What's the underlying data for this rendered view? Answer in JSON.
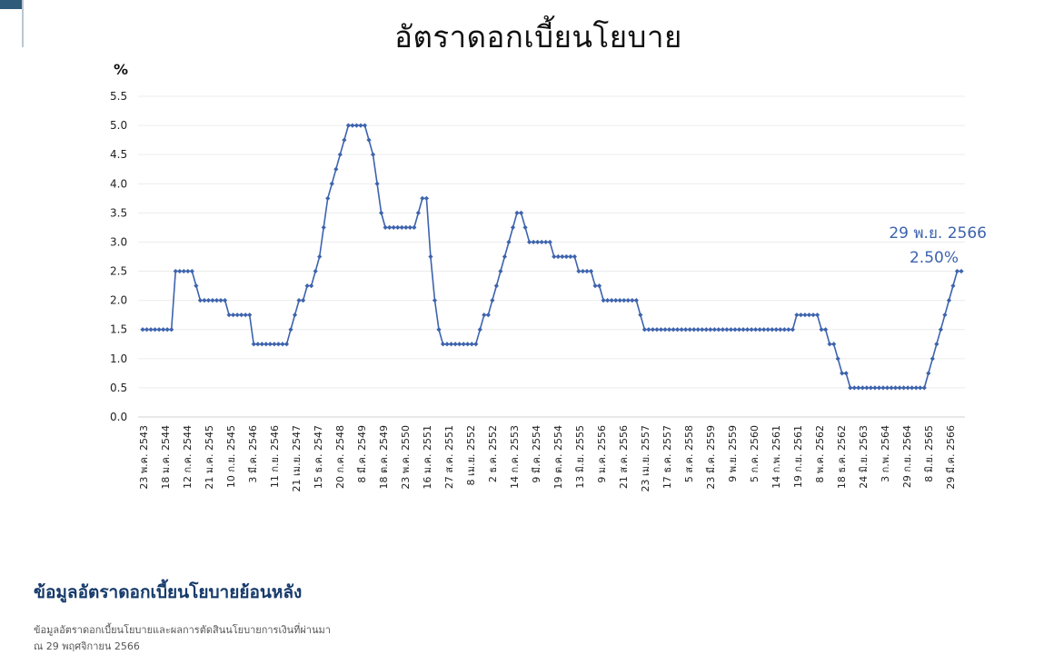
{
  "chart_data": {
    "type": "line",
    "title": "อัตราดอกเบี้ยนโยบาย",
    "ylabel": "%",
    "ylim": [
      0,
      5.5
    ],
    "yticks": [
      "0.0",
      "0.5",
      "1.0",
      "1.5",
      "2.0",
      "2.5",
      "3.0",
      "3.5",
      "4.0",
      "4.5",
      "5.0",
      "5.5"
    ],
    "grid": true,
    "line_color": "#3d63ad",
    "x_tick_labels": [
      "23 พ.ค. 2543",
      "18 ม.ค. 2544",
      "12 ก.ค. 2544",
      "21 ม.ค. 2545",
      "10 ก.ย. 2545",
      "3 มี.ค. 2546",
      "11 ก.ย. 2546",
      "21 เม.ย. 2547",
      "15 ธ.ค. 2547",
      "20 ก.ค. 2548",
      "8 มี.ค. 2549",
      "18 ต.ค. 2549",
      "23 พ.ค. 2550",
      "16 ม.ค. 2551",
      "27 ส.ค. 2551",
      "8 เม.ย. 2552",
      "2 ธ.ค. 2552",
      "14 ก.ค. 2553",
      "9 มี.ค. 2554",
      "19 ต.ค. 2554",
      "13 มิ.ย. 2555",
      "9 ม.ค. 2556",
      "21 ส.ค. 2556",
      "23 เม.ย. 2557",
      "17 ธ.ค. 2557",
      "5 ส.ค. 2558",
      "23 มี.ค. 2559",
      "9 พ.ย. 2559",
      "5 ก.ค. 2560",
      "14 ก.พ. 2561",
      "19 ก.ย. 2561",
      "8 พ.ค. 2562",
      "18 ธ.ค. 2562",
      "24 มิ.ย. 2563",
      "3 ก.พ. 2564",
      "29 ก.ย. 2564",
      "8 มิ.ย. 2565",
      "29 มี.ค. 2566"
    ],
    "series": [
      {
        "values": [
          1.5,
          1.5,
          1.5,
          1.5,
          1.5,
          1.5,
          1.5,
          1.5,
          2.5,
          2.5,
          2.5,
          2.5,
          2.5,
          2.25,
          2.0,
          2.0,
          2.0,
          2.0,
          2.0,
          2.0,
          2.0,
          1.75,
          1.75,
          1.75,
          1.75,
          1.75,
          1.75,
          1.25,
          1.25,
          1.25,
          1.25,
          1.25,
          1.25,
          1.25,
          1.25,
          1.25,
          1.5,
          1.75,
          2.0,
          2.0,
          2.25,
          2.25,
          2.5,
          2.75,
          3.25,
          3.75,
          4.0,
          4.25,
          4.5,
          4.75,
          5.0,
          5.0,
          5.0,
          5.0,
          5.0,
          4.75,
          4.5,
          4.0,
          3.5,
          3.25,
          3.25,
          3.25,
          3.25,
          3.25,
          3.25,
          3.25,
          3.25,
          3.5,
          3.75,
          3.75,
          2.75,
          2.0,
          1.5,
          1.25,
          1.25,
          1.25,
          1.25,
          1.25,
          1.25,
          1.25,
          1.25,
          1.25,
          1.5,
          1.75,
          1.75,
          2.0,
          2.25,
          2.5,
          2.75,
          3.0,
          3.25,
          3.5,
          3.5,
          3.25,
          3.0,
          3.0,
          3.0,
          3.0,
          3.0,
          3.0,
          2.75,
          2.75,
          2.75,
          2.75,
          2.75,
          2.75,
          2.5,
          2.5,
          2.5,
          2.5,
          2.25,
          2.25,
          2.0,
          2.0,
          2.0,
          2.0,
          2.0,
          2.0,
          2.0,
          2.0,
          2.0,
          1.75,
          1.5,
          1.5,
          1.5,
          1.5,
          1.5,
          1.5,
          1.5,
          1.5,
          1.5,
          1.5,
          1.5,
          1.5,
          1.5,
          1.5,
          1.5,
          1.5,
          1.5,
          1.5,
          1.5,
          1.5,
          1.5,
          1.5,
          1.5,
          1.5,
          1.5,
          1.5,
          1.5,
          1.5,
          1.5,
          1.5,
          1.5,
          1.5,
          1.5,
          1.5,
          1.5,
          1.5,
          1.5,
          1.75,
          1.75,
          1.75,
          1.75,
          1.75,
          1.75,
          1.5,
          1.5,
          1.25,
          1.25,
          1.0,
          0.75,
          0.75,
          0.5,
          0.5,
          0.5,
          0.5,
          0.5,
          0.5,
          0.5,
          0.5,
          0.5,
          0.5,
          0.5,
          0.5,
          0.5,
          0.5,
          0.5,
          0.5,
          0.5,
          0.5,
          0.5,
          0.75,
          1.0,
          1.25,
          1.5,
          1.75,
          2.0,
          2.25,
          2.5,
          2.5
        ]
      }
    ],
    "annotation": {
      "date": "29 พ.ย. 2566",
      "value": "2.50%"
    }
  },
  "section": {
    "heading": "ข้อมูลอัตราดอกเบี้ยนโยบายย้อนหลัง",
    "description_line1": "ข้อมูลอัตราดอกเบี้ยนโยบายและผลการตัดสินนโยบายการเงินที่ผ่านมา",
    "description_line2": "ณ 29 พฤศจิกายน 2566"
  }
}
